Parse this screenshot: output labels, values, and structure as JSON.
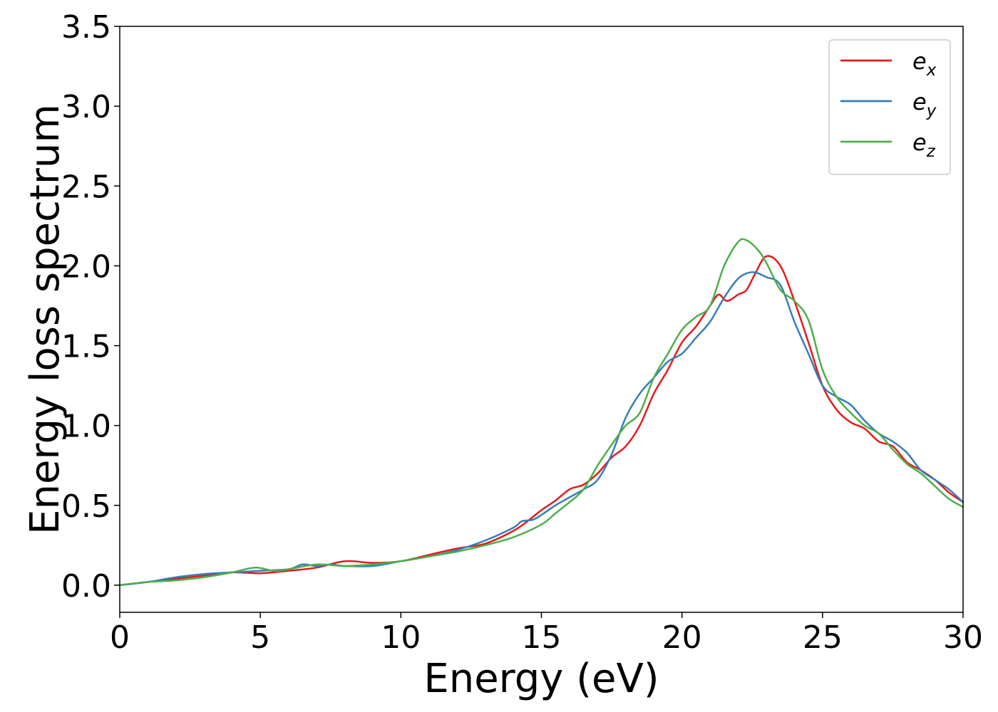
{
  "chart_data": {
    "type": "line",
    "title": "",
    "xlabel": "Energy (eV)",
    "ylabel": "Energy loss spectrum",
    "xlim": [
      0,
      30
    ],
    "ylim": [
      -0.17,
      3.5
    ],
    "xticks": [
      0,
      5,
      10,
      15,
      20,
      25,
      30
    ],
    "xtick_labels": [
      "0",
      "5",
      "10",
      "15",
      "20",
      "25",
      "30"
    ],
    "yticks": [
      0.0,
      0.5,
      1.0,
      1.5,
      2.0,
      2.5,
      3.0,
      3.5
    ],
    "ytick_labels": [
      "0.0",
      "0.5",
      "1.0",
      "1.5",
      "2.0",
      "2.5",
      "3.0",
      "3.5"
    ],
    "grid": false,
    "legend_position": "top-right",
    "series": [
      {
        "name": "e",
        "subscript": "x",
        "color": "#e41a1c",
        "points": [
          [
            0,
            0
          ],
          [
            1,
            0.02
          ],
          [
            2,
            0.04
          ],
          [
            3,
            0.06
          ],
          [
            4,
            0.08
          ],
          [
            5,
            0.075
          ],
          [
            6,
            0.09
          ],
          [
            7,
            0.11
          ],
          [
            8,
            0.15
          ],
          [
            9,
            0.14
          ],
          [
            10,
            0.15
          ],
          [
            11,
            0.19
          ],
          [
            12,
            0.23
          ],
          [
            13,
            0.26
          ],
          [
            14,
            0.34
          ],
          [
            14.5,
            0.4
          ],
          [
            15,
            0.47
          ],
          [
            15.5,
            0.53
          ],
          [
            16,
            0.6
          ],
          [
            16.5,
            0.63
          ],
          [
            17,
            0.7
          ],
          [
            17.5,
            0.8
          ],
          [
            18,
            0.87
          ],
          [
            18.5,
            1.0
          ],
          [
            19,
            1.2
          ],
          [
            19.5,
            1.35
          ],
          [
            20,
            1.52
          ],
          [
            20.5,
            1.62
          ],
          [
            21,
            1.75
          ],
          [
            21.3,
            1.82
          ],
          [
            21.6,
            1.78
          ],
          [
            22,
            1.82
          ],
          [
            22.3,
            1.85
          ],
          [
            22.6,
            1.95
          ],
          [
            23,
            2.06
          ],
          [
            23.5,
            2.0
          ],
          [
            24,
            1.78
          ],
          [
            24.5,
            1.52
          ],
          [
            25,
            1.25
          ],
          [
            25.5,
            1.1
          ],
          [
            26,
            1.02
          ],
          [
            26.5,
            0.98
          ],
          [
            27,
            0.9
          ],
          [
            27.5,
            0.87
          ],
          [
            28,
            0.77
          ],
          [
            28.5,
            0.72
          ],
          [
            29,
            0.66
          ],
          [
            29.5,
            0.58
          ],
          [
            30,
            0.52
          ]
        ]
      },
      {
        "name": "e",
        "subscript": "y",
        "color": "#377eb8",
        "points": [
          [
            0,
            0
          ],
          [
            1,
            0.02
          ],
          [
            2,
            0.05
          ],
          [
            3,
            0.07
          ],
          [
            4,
            0.08
          ],
          [
            5,
            0.09
          ],
          [
            6,
            0.1
          ],
          [
            6.5,
            0.13
          ],
          [
            7,
            0.12
          ],
          [
            7.5,
            0.13
          ],
          [
            8,
            0.12
          ],
          [
            9,
            0.12
          ],
          [
            10,
            0.15
          ],
          [
            11,
            0.18
          ],
          [
            12,
            0.22
          ],
          [
            13,
            0.28
          ],
          [
            14,
            0.36
          ],
          [
            14.3,
            0.4
          ],
          [
            14.7,
            0.41
          ],
          [
            15,
            0.44
          ],
          [
            15.5,
            0.5
          ],
          [
            16,
            0.55
          ],
          [
            16.5,
            0.6
          ],
          [
            17,
            0.66
          ],
          [
            17.5,
            0.82
          ],
          [
            18,
            1.05
          ],
          [
            18.5,
            1.2
          ],
          [
            19,
            1.3
          ],
          [
            19.5,
            1.4
          ],
          [
            20,
            1.45
          ],
          [
            20.5,
            1.55
          ],
          [
            21,
            1.65
          ],
          [
            21.5,
            1.8
          ],
          [
            22,
            1.92
          ],
          [
            22.5,
            1.96
          ],
          [
            23,
            1.93
          ],
          [
            23.5,
            1.88
          ],
          [
            24,
            1.65
          ],
          [
            24.5,
            1.45
          ],
          [
            25,
            1.25
          ],
          [
            25.5,
            1.18
          ],
          [
            26,
            1.13
          ],
          [
            26.5,
            1.03
          ],
          [
            27,
            0.95
          ],
          [
            27.5,
            0.9
          ],
          [
            28,
            0.83
          ],
          [
            28.5,
            0.72
          ],
          [
            29,
            0.66
          ],
          [
            29.5,
            0.6
          ],
          [
            30,
            0.52
          ]
        ]
      },
      {
        "name": "e",
        "subscript": "z",
        "color": "#4daf4a",
        "points": [
          [
            0,
            0
          ],
          [
            1,
            0.02
          ],
          [
            2,
            0.03
          ],
          [
            3,
            0.05
          ],
          [
            4,
            0.08
          ],
          [
            4.8,
            0.11
          ],
          [
            5.5,
            0.09
          ],
          [
            6,
            0.1
          ],
          [
            7,
            0.13
          ],
          [
            8,
            0.12
          ],
          [
            9,
            0.13
          ],
          [
            10,
            0.15
          ],
          [
            11,
            0.18
          ],
          [
            12,
            0.21
          ],
          [
            13,
            0.25
          ],
          [
            14,
            0.3
          ],
          [
            15,
            0.38
          ],
          [
            15.5,
            0.45
          ],
          [
            16,
            0.52
          ],
          [
            16.5,
            0.6
          ],
          [
            17,
            0.75
          ],
          [
            17.5,
            0.88
          ],
          [
            18,
            1.0
          ],
          [
            18.5,
            1.08
          ],
          [
            19,
            1.3
          ],
          [
            19.5,
            1.45
          ],
          [
            20,
            1.6
          ],
          [
            20.5,
            1.68
          ],
          [
            21,
            1.75
          ],
          [
            21.5,
            2.0
          ],
          [
            22,
            2.15
          ],
          [
            22.3,
            2.16
          ],
          [
            22.7,
            2.1
          ],
          [
            23,
            2.02
          ],
          [
            23.5,
            1.85
          ],
          [
            24,
            1.78
          ],
          [
            24.5,
            1.66
          ],
          [
            25,
            1.35
          ],
          [
            25.5,
            1.18
          ],
          [
            26,
            1.08
          ],
          [
            26.5,
            1.0
          ],
          [
            27,
            0.95
          ],
          [
            27.5,
            0.85
          ],
          [
            28,
            0.76
          ],
          [
            28.5,
            0.7
          ],
          [
            29,
            0.62
          ],
          [
            29.5,
            0.54
          ],
          [
            30,
            0.49
          ]
        ]
      }
    ]
  }
}
